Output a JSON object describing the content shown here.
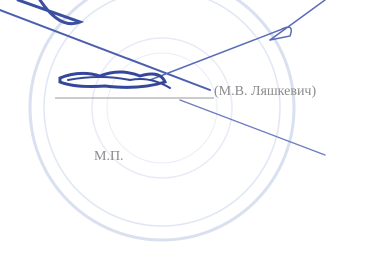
{
  "signature": {
    "name": "(М.В. Ляшкевич)"
  },
  "stamp_mark": "М.П."
}
